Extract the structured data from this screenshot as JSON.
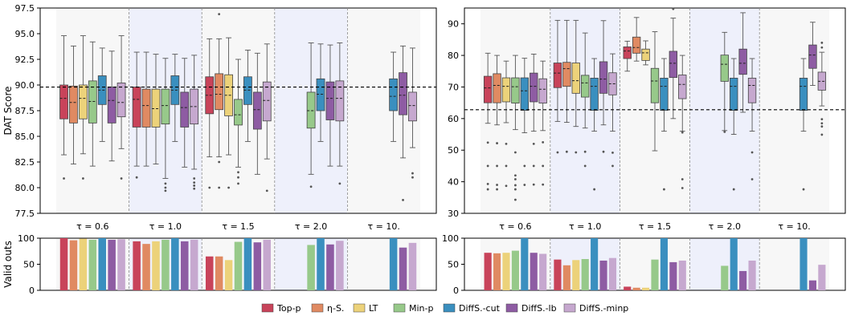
{
  "chart_data": {
    "type": "box",
    "methods": [
      "Top-p",
      "η-S.",
      "LT",
      "Min-p",
      "DiffS.-cut",
      "DiffS.-lb",
      "DiffS.-minp"
    ],
    "colors": [
      "#c8435a",
      "#e08a62",
      "#ecd27a",
      "#97c98a",
      "#3a8fbf",
      "#8e5ca3",
      "#c6a8cf"
    ],
    "groups": [
      "τ = 0.6",
      "τ = 1.0",
      "τ = 1.5",
      "τ = 2.0",
      "τ = 10."
    ],
    "panels": [
      {
        "ylabel": "DAT Score",
        "ylim": [
          77.5,
          97.5
        ],
        "yticks": [
          "77.5",
          "80.0",
          "82.5",
          "85.0",
          "87.5",
          "90.0",
          "92.5",
          "95.0",
          "97.5"
        ],
        "reference_line": 89.8,
        "boxes": [
          [
            {
              "whislo": 83.2,
              "q1": 86.7,
              "med": 88.7,
              "q3": 90.0,
              "whishi": 94.8,
              "fliers": [
                80.9
              ]
            },
            {
              "whislo": 82.3,
              "q1": 86.3,
              "med": 88.3,
              "q3": 89.9,
              "whishi": 93.8
            },
            {
              "whislo": 83.3,
              "q1": 86.7,
              "med": 88.7,
              "q3": 90.0,
              "whishi": 94.8,
              "fliers": [
                80.9
              ]
            },
            {
              "whislo": 82.1,
              "q1": 86.3,
              "med": 88.4,
              "q3": 90.4,
              "whishi": 94.2
            },
            {
              "whislo": 84.5,
              "q1": 88.1,
              "med": 89.5,
              "q3": 90.9,
              "whishi": 93.6
            },
            {
              "whislo": 82.6,
              "q1": 86.3,
              "med": 88.5,
              "q3": 89.8,
              "whishi": 93.3
            },
            {
              "whislo": 83.8,
              "q1": 86.9,
              "med": 88.3,
              "q3": 90.2,
              "whishi": 94.8,
              "fliers": [
                80.9
              ]
            }
          ],
          [
            {
              "whislo": 82.1,
              "q1": 85.9,
              "med": 88.6,
              "q3": 89.8,
              "whishi": 93.2,
              "fliers": [
                81.0
              ]
            },
            {
              "whislo": 82.1,
              "q1": 85.9,
              "med": 88.0,
              "q3": 89.6,
              "whishi": 93.2
            },
            {
              "whislo": 82.3,
              "q1": 85.9,
              "med": 87.7,
              "q3": 89.6,
              "whishi": 93.0
            },
            {
              "whislo": 80.9,
              "q1": 86.2,
              "med": 88.0,
              "q3": 89.6,
              "whishi": 92.6,
              "fliers": [
                80.4,
                80.0,
                79.7
              ]
            },
            {
              "whislo": 84.5,
              "q1": 88.1,
              "med": 89.5,
              "q3": 90.9,
              "whishi": 93.0
            },
            {
              "whislo": 82.0,
              "q1": 85.9,
              "med": 87.8,
              "q3": 89.3,
              "whishi": 92.6
            },
            {
              "whislo": 81.8,
              "q1": 86.2,
              "med": 87.9,
              "q3": 89.6,
              "whishi": 92.9,
              "fliers": [
                80.9,
                80.5,
                80.2,
                79.9
              ]
            }
          ],
          [
            {
              "whislo": 83.0,
              "q1": 87.2,
              "med": 89.0,
              "q3": 90.8,
              "whishi": 94.5,
              "fliers": [
                80.0
              ]
            },
            {
              "whislo": 83.0,
              "q1": 87.6,
              "med": 89.1,
              "q3": 91.1,
              "whishi": 94.5,
              "fliers": [
                82.5,
                96.9,
                80.0
              ]
            },
            {
              "whislo": 83.2,
              "q1": 87.0,
              "med": 89.0,
              "q3": 91.0,
              "whishi": 94.6,
              "fliers": [
                80.0
              ]
            },
            {
              "whislo": 82.0,
              "q1": 86.1,
              "med": 87.1,
              "q3": 88.6,
              "whishi": 92.5,
              "fliers": [
                81.5,
                81.0,
                80.4
              ]
            },
            {
              "whislo": 84.5,
              "q1": 88.1,
              "med": 89.5,
              "q3": 90.8,
              "whishi": 93.4
            },
            {
              "whislo": 81.3,
              "q1": 85.7,
              "med": 87.6,
              "q3": 89.3,
              "whishi": 93.1
            },
            {
              "whislo": 82.8,
              "q1": 86.5,
              "med": 88.5,
              "q3": 90.3,
              "whishi": 94.0,
              "fliers": [
                79.7
              ]
            }
          ],
          [
            null,
            null,
            null,
            {
              "whislo": 81.3,
              "q1": 85.8,
              "med": 87.5,
              "q3": 89.3,
              "whishi": 94.1,
              "fliers": [
                80.1
              ]
            },
            {
              "whislo": 84.5,
              "q1": 87.5,
              "med": 89.1,
              "q3": 90.6,
              "whishi": 94.0
            },
            {
              "whislo": 82.1,
              "q1": 86.6,
              "med": 88.7,
              "q3": 90.3,
              "whishi": 93.9
            },
            {
              "whislo": 82.1,
              "q1": 86.5,
              "med": 88.7,
              "q3": 90.4,
              "whishi": 94.1,
              "fliers": [
                80.4
              ]
            }
          ],
          [
            null,
            null,
            null,
            null,
            {
              "whislo": 84.5,
              "q1": 87.5,
              "med": 88.9,
              "q3": 90.6,
              "whishi": 93.2
            },
            {
              "whislo": 82.9,
              "q1": 87.1,
              "med": 89.0,
              "q3": 91.2,
              "whishi": 93.8,
              "fliers": [
                78.8
              ]
            },
            {
              "whislo": 83.9,
              "q1": 86.5,
              "med": 88.0,
              "q3": 89.3,
              "whishi": 93.6,
              "fliers": [
                81.4,
                81.0
              ]
            }
          ]
        ],
        "valid_outs": [
          [
            100,
            96,
            99,
            97,
            100,
            97,
            98
          ],
          [
            94,
            89,
            94,
            97,
            100,
            94,
            97
          ],
          [
            65,
            65,
            58,
            93,
            100,
            92,
            97
          ],
          [
            null,
            null,
            null,
            87,
            100,
            88,
            95
          ],
          [
            null,
            null,
            null,
            null,
            100,
            82,
            91
          ]
        ]
      },
      {
        "ylabel": "",
        "ylim": [
          30,
          95
        ],
        "yticks": [
          "30",
          "40",
          "50",
          "60",
          "70",
          "80",
          "90"
        ],
        "reference_line": 62.8,
        "boxes": [
          [
            {
              "whislo": 58.5,
              "q1": 65.0,
              "med": 69.7,
              "q3": 73.4,
              "whishi": 80.7,
              "fliers": [
                52.4,
                45.0,
                39.3,
                37.6
              ]
            },
            {
              "whislo": 58.0,
              "q1": 65.0,
              "med": 70.5,
              "q3": 74.2,
              "whishi": 80.0,
              "fliers": [
                52.2,
                45.0,
                39.0,
                37.6
              ]
            },
            {
              "whislo": 58.7,
              "q1": 65.3,
              "med": 70.2,
              "q3": 72.9,
              "whishi": 78.2,
              "fliers": [
                52.0,
                45.0,
                38.7
              ]
            },
            {
              "whislo": 56.5,
              "q1": 64.9,
              "med": 70.1,
              "q3": 72.9,
              "whishi": 80.0,
              "fliers": [
                49.3,
                42.0,
                40.8,
                38.9,
                37.6,
                34.3
              ]
            },
            {
              "whislo": 55.5,
              "q1": 62.6,
              "med": 68.8,
              "q3": 72.9,
              "whishi": 79.1,
              "fliers": [
                45.0,
                39.0
              ]
            },
            {
              "whislo": 56.0,
              "q1": 65.3,
              "med": 70.2,
              "q3": 74.4,
              "whishi": 80.4,
              "fliers": [
                52.0,
                45.0,
                39.1
              ]
            },
            {
              "whislo": 56.2,
              "q1": 64.9,
              "med": 69.3,
              "q3": 72.6,
              "whishi": 78.2,
              "fliers": [
                52.5,
                45.0,
                39.1
              ]
            }
          ],
          [
            {
              "whislo": 59.1,
              "q1": 69.8,
              "med": 74.4,
              "q3": 77.6,
              "whishi": 91.1,
              "fliers": [
                49.3
              ]
            },
            {
              "whislo": 58.8,
              "q1": 70.2,
              "med": 75.8,
              "q3": 77.8,
              "whishi": 91.1,
              "fliers": [
                49.5
              ]
            },
            {
              "whislo": 57.5,
              "q1": 68.0,
              "med": 72.0,
              "q3": 77.6,
              "whishi": 91.1,
              "fliers": [
                49.3
              ]
            },
            {
              "whislo": 57.0,
              "q1": 66.8,
              "med": 71.3,
              "q3": 73.7,
              "whishi": 87.1,
              "fliers": [
                49.5,
                45.0
              ]
            },
            {
              "whislo": 56.0,
              "q1": 62.6,
              "med": 70.2,
              "q3": 72.8,
              "whishi": 79.0,
              "fliers": [
                37.6
              ]
            },
            {
              "whislo": 58.0,
              "q1": 68.0,
              "med": 72.5,
              "q3": 78.0,
              "whishi": 91.0,
              "fliers": [
                49.5
              ]
            },
            {
              "whislo": 56.0,
              "q1": 67.5,
              "med": 71.0,
              "q3": 74.5,
              "whishi": 80.5,
              "fliers": [
                49.2,
                45.0
              ]
            }
          ],
          [
            {
              "whislo": 75.0,
              "q1": 79.0,
              "med": 81.4,
              "q3": 82.7,
              "whishi": 84.5
            },
            {
              "whislo": 78.2,
              "q1": 80.7,
              "med": 82.5,
              "q3": 85.8,
              "whishi": 92.0
            },
            {
              "whislo": 77.0,
              "q1": 78.4,
              "med": 80.8,
              "q3": 82.0,
              "whishi": 84.6
            },
            {
              "whislo": 49.8,
              "q1": 65.0,
              "med": 71.9,
              "q3": 75.9,
              "whishi": 87.5
            },
            {
              "whislo": 56.0,
              "q1": 62.6,
              "med": 70.2,
              "q3": 72.8,
              "whishi": 79.0,
              "fliers": [
                37.6
              ]
            },
            {
              "whislo": 60.0,
              "q1": 73.0,
              "med": 77.5,
              "q3": 81.3,
              "whishi": 91.8,
              "fliers": [
                94.7
              ]
            },
            {
              "whislo": 56.0,
              "q1": 66.3,
              "med": 70.8,
              "q3": 73.8,
              "whishi": 80.0,
              "fliers": [
                55.6,
                40.8,
                38.0
              ]
            }
          ],
          [
            null,
            null,
            null,
            {
              "whislo": 56.2,
              "q1": 71.8,
              "med": 77.2,
              "q3": 80.1,
              "whishi": 87.3,
              "fliers": [
                55.8
              ]
            },
            {
              "whislo": 55.0,
              "q1": 62.6,
              "med": 70.2,
              "q3": 72.8,
              "whishi": 79.0,
              "fliers": [
                37.6
              ]
            },
            {
              "whislo": 62.0,
              "q1": 74.0,
              "med": 77.5,
              "q3": 82.0,
              "whishi": 93.5
            },
            {
              "whislo": 56.0,
              "q1": 65.0,
              "med": 70.5,
              "q3": 72.8,
              "whishi": 79.0,
              "fliers": [
                49.3,
                40.8
              ]
            }
          ],
          [
            null,
            null,
            null,
            null,
            {
              "whislo": 56.0,
              "q1": 62.6,
              "med": 70.2,
              "q3": 72.8,
              "whishi": 79.0,
              "fliers": [
                37.6
              ]
            },
            {
              "whislo": 70.5,
              "q1": 75.9,
              "med": 80.1,
              "q3": 83.3,
              "whishi": 90.5
            },
            {
              "whislo": 64.0,
              "q1": 69.0,
              "med": 71.8,
              "q3": 74.7,
              "whishi": 81.0,
              "fliers": [
                84.0,
                82.5,
                59.8,
                58.5,
                57.5,
                54.9
              ]
            }
          ]
        ],
        "valid_outs": [
          [
            72,
            71,
            72,
            76,
            100,
            72,
            70
          ],
          [
            59,
            48,
            58,
            60,
            100,
            57,
            62
          ],
          [
            7,
            5,
            5,
            59,
            100,
            54,
            57
          ],
          [
            null,
            null,
            null,
            47,
            100,
            37,
            57
          ],
          [
            null,
            null,
            null,
            null,
            100,
            19,
            49
          ]
        ]
      }
    ],
    "bottom_ylabel": "Valid outs",
    "bottom_ylim": [
      0,
      100
    ],
    "bottom_yticks": [
      "0",
      "50",
      "100"
    ]
  }
}
